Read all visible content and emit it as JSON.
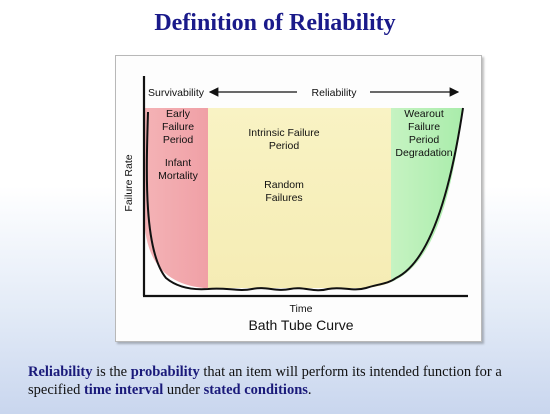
{
  "slide": {
    "title": "Definition of Reliability"
  },
  "diagram": {
    "top_label_left": "Survivability",
    "top_label_right": "Reliability",
    "y_axis_label": "Failure Rate",
    "x_axis_label": "Time",
    "caption": "Bath Tube Curve",
    "regions": {
      "early": [
        "Early",
        "Failure",
        "Period",
        "Infant",
        "Mortality"
      ],
      "intrinsic": [
        "Intrinsic Failure",
        "Period",
        "Random",
        "Failures"
      ],
      "wearout": [
        "Wearout",
        "Failure",
        "Period",
        "Degradation"
      ]
    },
    "colors": {
      "early": "#f2a7ab",
      "intrinsic": "#f7f0bb",
      "wearout": "#b6f0b6"
    }
  },
  "definition": {
    "w1": "Reliability",
    "w2": " is the ",
    "w3": "probability",
    "w4": " that an item will perform its intended function for a specified ",
    "w5": "time interval",
    "w6": " under ",
    "w7": "stated conditions",
    "w8": "."
  }
}
